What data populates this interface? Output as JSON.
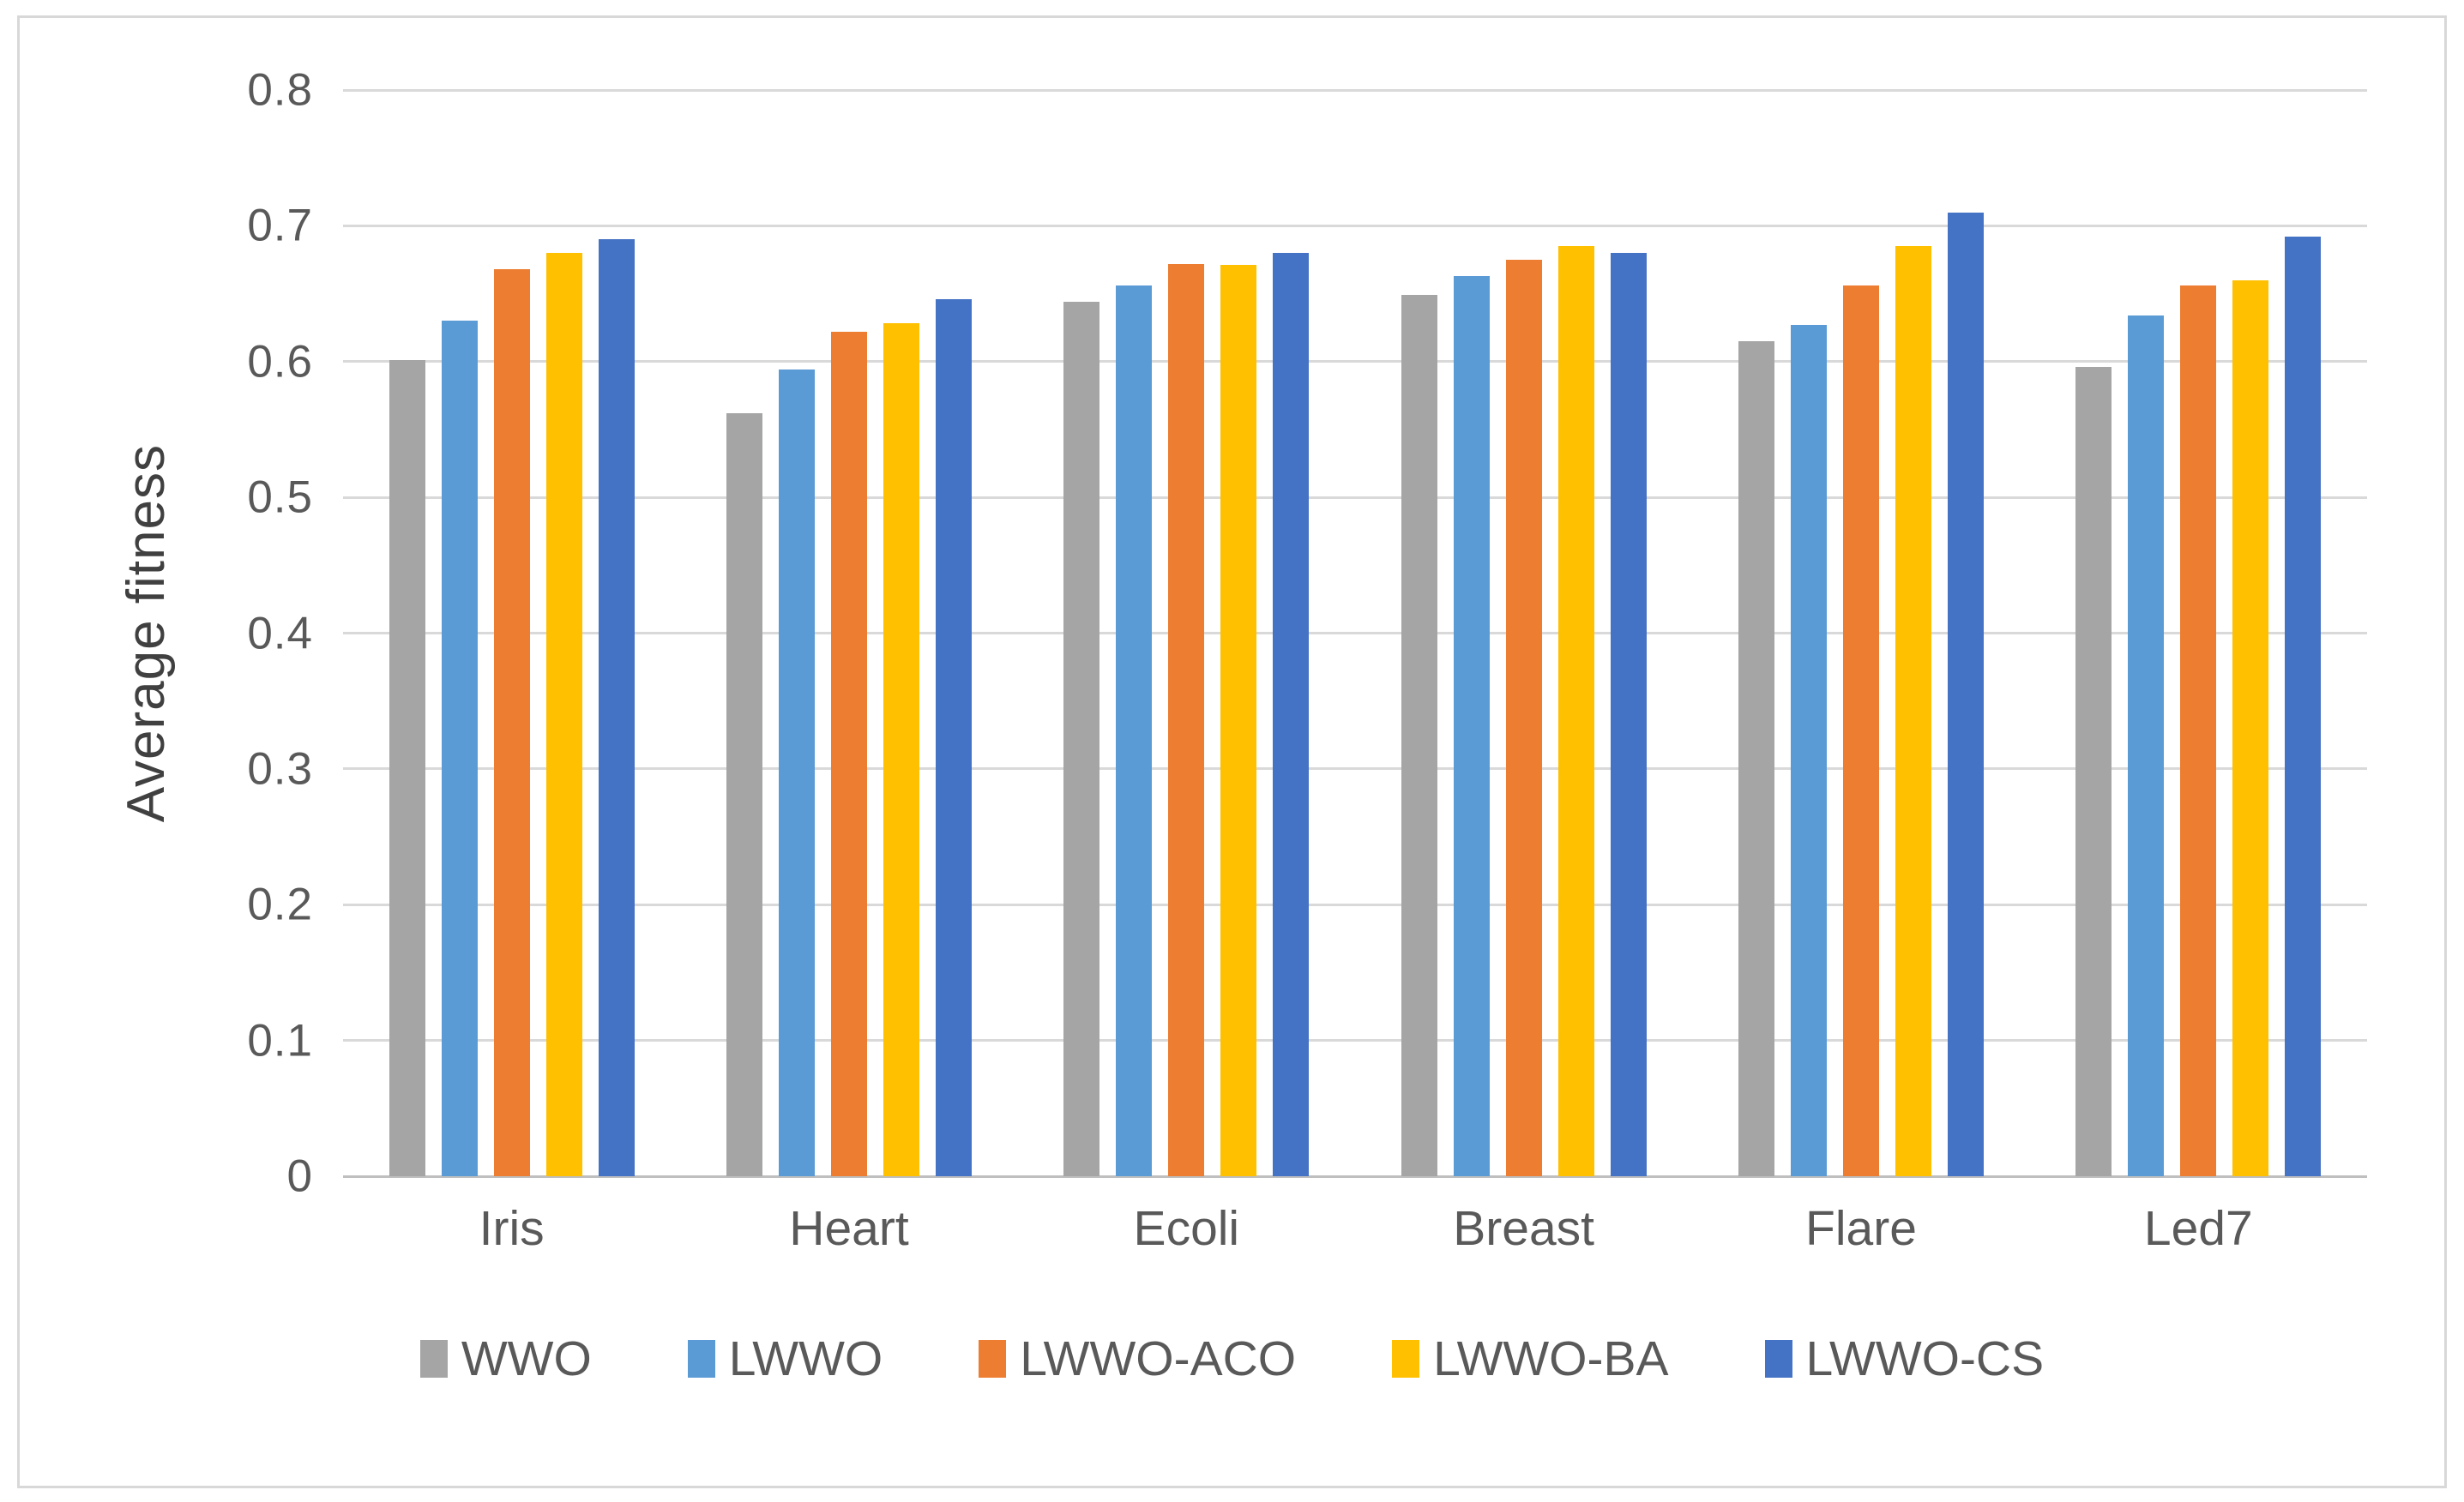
{
  "figure": {
    "background": "#FFFFFF",
    "border_color": "#D8D8D8"
  },
  "chart_data": {
    "type": "bar",
    "title": "",
    "xlabel": "",
    "ylabel": "Average fitness",
    "ylim": [
      0,
      0.8
    ],
    "ytick_step": 0.1,
    "ytick_labels": [
      "0.8",
      "0.7",
      "0.6",
      "0.5",
      "0.4",
      "0.3",
      "0.2",
      "0.1",
      "0"
    ],
    "grid": "horizontal",
    "gridline_color": "#D9D9D9",
    "axis_line_color": "#BFBFBF",
    "legend_position": "bottom",
    "categories": [
      "Iris",
      "Heart",
      "Ecoli",
      "Breast",
      "Flare",
      "Led7"
    ],
    "series": [
      {
        "name": "WWO",
        "color": "#A5A5A5",
        "values": [
          0.601,
          0.562,
          0.644,
          0.649,
          0.615,
          0.596
        ]
      },
      {
        "name": "LWWO",
        "color": "#5B9BD5",
        "values": [
          0.63,
          0.594,
          0.656,
          0.663,
          0.627,
          0.634
        ]
      },
      {
        "name": "LWWO-ACO",
        "color": "#ED7D31",
        "values": [
          0.668,
          0.622,
          0.672,
          0.675,
          0.656,
          0.656
        ]
      },
      {
        "name": "LWWO-BA",
        "color": "#FFC000",
        "values": [
          0.68,
          0.628,
          0.671,
          0.685,
          0.685,
          0.66
        ]
      },
      {
        "name": "LWWO-CS",
        "color": "#4472C4",
        "values": [
          0.69,
          0.646,
          0.68,
          0.68,
          0.71,
          0.692
        ]
      }
    ]
  }
}
